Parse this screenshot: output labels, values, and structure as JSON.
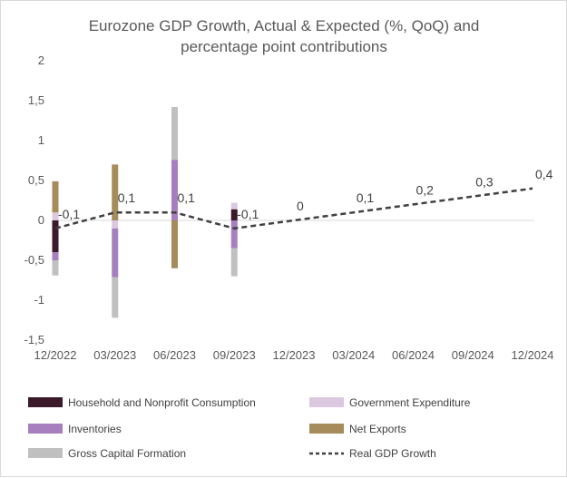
{
  "chart_data": {
    "type": "bar",
    "title_lines": [
      "Eurozone GDP Growth, Actual & Expected (%, QoQ) and",
      "percentage point contributions"
    ],
    "xlabel": "",
    "ylabel": "",
    "categories": [
      "12/2022",
      "03/2023",
      "06/2023",
      "09/2023",
      "12/2023",
      "03/2024",
      "06/2024",
      "09/2024",
      "12/2024"
    ],
    "ylim": [
      -1.5,
      2
    ],
    "yticks": [
      "-1,5",
      "-1",
      "-0,5",
      "0",
      "0,5",
      "1",
      "1,5",
      "2"
    ],
    "stacked_series": [
      {
        "name": "Household and Nonprofit Consumption",
        "color": "#3b1a2a",
        "values": [
          -0.4,
          0.0,
          0.0,
          0.14,
          null,
          null,
          null,
          null,
          null
        ]
      },
      {
        "name": "Government Expenditure",
        "color": "#dcc8e0",
        "values": [
          0.1,
          -0.1,
          0.0,
          0.08,
          null,
          null,
          null,
          null,
          null
        ]
      },
      {
        "name": "Inventories",
        "color": "#a77fbf",
        "values": [
          -0.1,
          -0.61,
          0.76,
          -0.35,
          null,
          null,
          null,
          null,
          null
        ]
      },
      {
        "name": "Net Exports",
        "color": "#a68b5b",
        "values": [
          0.39,
          0.7,
          -0.6,
          0.0,
          null,
          null,
          null,
          null,
          null
        ]
      },
      {
        "name": "Gross Capital Formation",
        "color": "#c0c0c0",
        "values": [
          -0.19,
          -0.51,
          0.66,
          -0.35,
          null,
          null,
          null,
          null,
          null
        ]
      }
    ],
    "line_series": {
      "name": "Real GDP Growth",
      "color": "#404040",
      "style": "dashed",
      "values": [
        -0.1,
        0.1,
        0.1,
        -0.1,
        0,
        0.1,
        0.2,
        0.3,
        0.4
      ],
      "labels": [
        "-0,1",
        "0,1",
        "0,1",
        "-0,1",
        "0",
        "0,1",
        "0,2",
        "0,3",
        "0,4"
      ]
    },
    "legend": [
      {
        "name": "Household and Nonprofit Consumption",
        "color": "#3b1a2a",
        "kind": "box"
      },
      {
        "name": "Government Expenditure",
        "color": "#dcc8e0",
        "kind": "box"
      },
      {
        "name": "Inventories",
        "color": "#a77fbf",
        "kind": "box"
      },
      {
        "name": "Net Exports",
        "color": "#a68b5b",
        "kind": "box"
      },
      {
        "name": "Gross Capital Formation",
        "color": "#c0c0c0",
        "kind": "box"
      },
      {
        "name": "Real GDP Growth",
        "color": "#404040",
        "kind": "dash"
      }
    ],
    "legend_position": "bottom",
    "grid": false
  }
}
